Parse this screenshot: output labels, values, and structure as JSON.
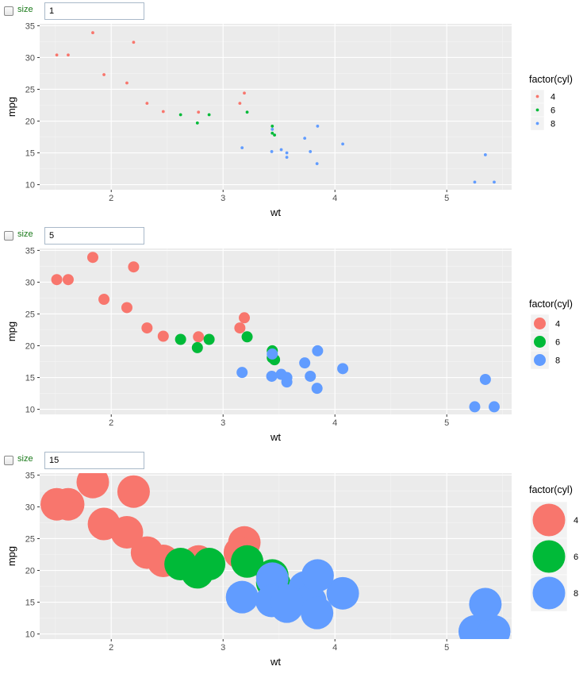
{
  "panels": [
    {
      "control_label": "size",
      "size_value": "1"
    },
    {
      "control_label": "size",
      "size_value": "5"
    },
    {
      "control_label": "size",
      "size_value": "15"
    }
  ],
  "chart_data": [
    {
      "type": "scatter",
      "xlabel": "wt",
      "ylabel": "mpg",
      "xlim": [
        1.36,
        5.58
      ],
      "ylim": [
        9.2,
        35.3
      ],
      "xticks": [
        2,
        3,
        4,
        5
      ],
      "yticks": [
        10,
        15,
        20,
        25,
        30,
        35
      ],
      "legend_title": "factor(cyl)",
      "legend_position": "right",
      "point_size": 1,
      "grid": true,
      "series": [
        {
          "name": "4",
          "color": "#F8766D",
          "points": [
            [
              2.32,
              22.8
            ],
            [
              3.19,
              24.4
            ],
            [
              3.15,
              22.8
            ],
            [
              2.2,
              32.4
            ],
            [
              1.615,
              30.4
            ],
            [
              1.835,
              33.9
            ],
            [
              2.465,
              21.5
            ],
            [
              1.935,
              27.3
            ],
            [
              2.14,
              26.0
            ],
            [
              1.513,
              30.4
            ],
            [
              2.78,
              21.4
            ]
          ]
        },
        {
          "name": "6",
          "color": "#00BA38",
          "points": [
            [
              2.62,
              21.0
            ],
            [
              2.875,
              21.0
            ],
            [
              3.215,
              21.4
            ],
            [
              3.44,
              18.1
            ],
            [
              3.44,
              19.2
            ],
            [
              3.46,
              17.8
            ],
            [
              2.77,
              19.7
            ]
          ]
        },
        {
          "name": "8",
          "color": "#619CFF",
          "points": [
            [
              3.44,
              18.7
            ],
            [
              3.57,
              14.3
            ],
            [
              4.07,
              16.4
            ],
            [
              3.73,
              17.3
            ],
            [
              3.78,
              15.2
            ],
            [
              5.25,
              10.4
            ],
            [
              5.424,
              10.4
            ],
            [
              5.345,
              14.7
            ],
            [
              3.52,
              15.5
            ],
            [
              3.435,
              15.2
            ],
            [
              3.84,
              13.3
            ],
            [
              3.845,
              19.2
            ],
            [
              3.17,
              15.8
            ],
            [
              3.57,
              15.0
            ]
          ]
        }
      ]
    },
    {
      "type": "scatter",
      "xlabel": "wt",
      "ylabel": "mpg",
      "xlim": [
        1.36,
        5.58
      ],
      "ylim": [
        9.2,
        35.3
      ],
      "xticks": [
        2,
        3,
        4,
        5
      ],
      "yticks": [
        10,
        15,
        20,
        25,
        30,
        35
      ],
      "legend_title": "factor(cyl)",
      "legend_position": "right",
      "point_size": 5,
      "grid": true,
      "series": [
        {
          "name": "4",
          "color": "#F8766D",
          "points": [
            [
              2.32,
              22.8
            ],
            [
              3.19,
              24.4
            ],
            [
              3.15,
              22.8
            ],
            [
              2.2,
              32.4
            ],
            [
              1.615,
              30.4
            ],
            [
              1.835,
              33.9
            ],
            [
              2.465,
              21.5
            ],
            [
              1.935,
              27.3
            ],
            [
              2.14,
              26.0
            ],
            [
              1.513,
              30.4
            ],
            [
              2.78,
              21.4
            ]
          ]
        },
        {
          "name": "6",
          "color": "#00BA38",
          "points": [
            [
              2.62,
              21.0
            ],
            [
              2.875,
              21.0
            ],
            [
              3.215,
              21.4
            ],
            [
              3.44,
              18.1
            ],
            [
              3.44,
              19.2
            ],
            [
              3.46,
              17.8
            ],
            [
              2.77,
              19.7
            ]
          ]
        },
        {
          "name": "8",
          "color": "#619CFF",
          "points": [
            [
              3.44,
              18.7
            ],
            [
              3.57,
              14.3
            ],
            [
              4.07,
              16.4
            ],
            [
              3.73,
              17.3
            ],
            [
              3.78,
              15.2
            ],
            [
              5.25,
              10.4
            ],
            [
              5.424,
              10.4
            ],
            [
              5.345,
              14.7
            ],
            [
              3.52,
              15.5
            ],
            [
              3.435,
              15.2
            ],
            [
              3.84,
              13.3
            ],
            [
              3.845,
              19.2
            ],
            [
              3.17,
              15.8
            ],
            [
              3.57,
              15.0
            ]
          ]
        }
      ]
    },
    {
      "type": "scatter",
      "xlabel": "wt",
      "ylabel": "mpg",
      "xlim": [
        1.36,
        5.58
      ],
      "ylim": [
        9.2,
        35.3
      ],
      "xticks": [
        2,
        3,
        4,
        5
      ],
      "yticks": [
        10,
        15,
        20,
        25,
        30,
        35
      ],
      "legend_title": "factor(cyl)",
      "legend_position": "right",
      "point_size": 15,
      "grid": true,
      "series": [
        {
          "name": "4",
          "color": "#F8766D",
          "points": [
            [
              2.32,
              22.8
            ],
            [
              3.19,
              24.4
            ],
            [
              3.15,
              22.8
            ],
            [
              2.2,
              32.4
            ],
            [
              1.615,
              30.4
            ],
            [
              1.835,
              33.9
            ],
            [
              2.465,
              21.5
            ],
            [
              1.935,
              27.3
            ],
            [
              2.14,
              26.0
            ],
            [
              1.513,
              30.4
            ],
            [
              2.78,
              21.4
            ]
          ]
        },
        {
          "name": "6",
          "color": "#00BA38",
          "points": [
            [
              2.62,
              21.0
            ],
            [
              2.875,
              21.0
            ],
            [
              3.215,
              21.4
            ],
            [
              3.44,
              18.1
            ],
            [
              3.44,
              19.2
            ],
            [
              3.46,
              17.8
            ],
            [
              2.77,
              19.7
            ]
          ]
        },
        {
          "name": "8",
          "color": "#619CFF",
          "points": [
            [
              3.44,
              18.7
            ],
            [
              3.57,
              14.3
            ],
            [
              4.07,
              16.4
            ],
            [
              3.73,
              17.3
            ],
            [
              3.78,
              15.2
            ],
            [
              5.25,
              10.4
            ],
            [
              5.424,
              10.4
            ],
            [
              5.345,
              14.7
            ],
            [
              3.52,
              15.5
            ],
            [
              3.435,
              15.2
            ],
            [
              3.84,
              13.3
            ],
            [
              3.845,
              19.2
            ],
            [
              3.17,
              15.8
            ],
            [
              3.57,
              15.0
            ]
          ]
        }
      ]
    }
  ]
}
